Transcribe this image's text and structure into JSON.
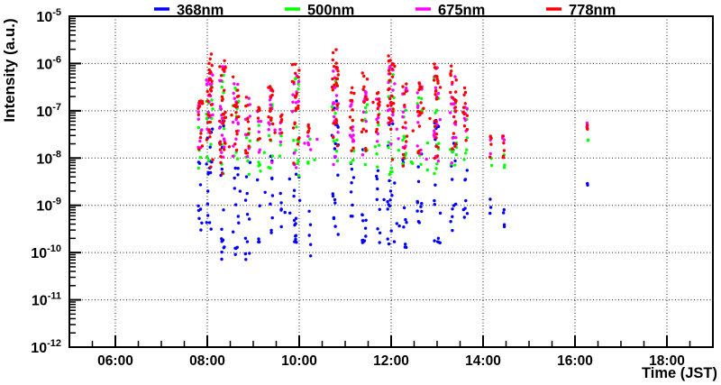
{
  "chart_data": {
    "type": "scatter",
    "title": "",
    "xlabel": "Time (JST)",
    "ylabel": "Intensity (a.u.)",
    "grid": true,
    "legend_position": "top",
    "marker": {
      "shape": "circle",
      "radius_px": 1.7
    },
    "x_axis": {
      "min_hours": 5.0,
      "max_hours": 19.0,
      "major_tick_hours": [
        6,
        8,
        10,
        12,
        14,
        16,
        18
      ],
      "major_tick_labels": [
        "06:00",
        "08:00",
        "10:00",
        "12:00",
        "14:00",
        "16:00",
        "18:00"
      ],
      "minor_tick_step_hours": 0.5
    },
    "y_axis": {
      "scale": "log",
      "min": 1e-12,
      "max": 1e-05,
      "tick_base": "10",
      "decade_exponents": [
        -5,
        -6,
        -7,
        -8,
        -9,
        -10,
        -11,
        -12
      ]
    },
    "series": [
      {
        "name": "368nm",
        "color": "#0000ff",
        "bias": 1.35
      },
      {
        "name": "500nm",
        "color": "#00ff00",
        "bias": 1.0
      },
      {
        "name": "675nm",
        "color": "#ff00ff",
        "bias": 0.7
      },
      {
        "name": "778nm",
        "color": "#ff0000",
        "bias": 0.6
      }
    ],
    "bursts": [
      {
        "t": 7.85,
        "w": 0.1,
        "pts": {
          "368nm": [
            9,
            -9.6,
            -8.0
          ],
          "500nm": [
            5,
            -8.3,
            -7.2
          ],
          "675nm": [
            9,
            -8.3,
            -6.8
          ],
          "778nm": [
            12,
            -8.3,
            -6.7
          ]
        }
      },
      {
        "t": 8.05,
        "w": 0.14,
        "pts": {
          "368nm": [
            18,
            -9.6,
            -6.9
          ],
          "500nm": [
            13,
            -8.4,
            -6.1
          ],
          "675nm": [
            18,
            -8.3,
            -6.0
          ],
          "778nm": [
            28,
            -8.3,
            -5.8
          ]
        }
      },
      {
        "t": 8.33,
        "w": 0.13,
        "pts": {
          "368nm": [
            17,
            -10.15,
            -7.1
          ],
          "500nm": [
            11,
            -8.4,
            -6.2
          ],
          "675nm": [
            17,
            -8.3,
            -6.0
          ],
          "778nm": [
            26,
            -8.4,
            -5.85
          ]
        }
      },
      {
        "t": 8.62,
        "w": 0.13,
        "pts": {
          "368nm": [
            13,
            -10.1,
            -7.5
          ],
          "500nm": [
            9,
            -8.3,
            -6.5
          ],
          "675nm": [
            13,
            -8.2,
            -6.4
          ],
          "778nm": [
            16,
            -8.3,
            -6.2
          ]
        }
      },
      {
        "t": 8.88,
        "w": 0.1,
        "pts": {
          "368nm": [
            11,
            -10.2,
            -7.9
          ],
          "500nm": [
            7,
            -8.4,
            -7.0
          ],
          "675nm": [
            9,
            -8.2,
            -6.7
          ],
          "778nm": [
            11,
            -8.3,
            -6.6
          ]
        }
      },
      {
        "t": 9.12,
        "w": 0.06,
        "pts": {
          "368nm": [
            6,
            -9.8,
            -8.3
          ],
          "500nm": [
            4,
            -8.3,
            -7.3
          ],
          "675nm": [
            5,
            -8.1,
            -7.0
          ],
          "778nm": [
            6,
            -8.2,
            -6.9
          ]
        }
      },
      {
        "t": 9.38,
        "w": 0.1,
        "pts": {
          "368nm": [
            9,
            -9.7,
            -7.8
          ],
          "500nm": [
            7,
            -8.3,
            -6.8
          ],
          "675nm": [
            10,
            -8.2,
            -6.5
          ],
          "778nm": [
            13,
            -8.3,
            -6.4
          ]
        }
      },
      {
        "t": 9.6,
        "w": 0.05,
        "pts": {
          "368nm": [
            5,
            -9.6,
            -8.4
          ],
          "500nm": [
            3,
            -8.2,
            -7.5
          ],
          "675nm": [
            4,
            -8.1,
            -7.2
          ],
          "778nm": [
            5,
            -8.2,
            -7.0
          ]
        }
      },
      {
        "t": 9.92,
        "w": 0.16,
        "pts": {
          "368nm": [
            15,
            -9.9,
            -7.3
          ],
          "500nm": [
            11,
            -8.4,
            -6.3
          ],
          "675nm": [
            15,
            -8.3,
            -6.2
          ],
          "778nm": [
            22,
            -8.3,
            -6.0
          ]
        }
      },
      {
        "t": 10.22,
        "w": 0.06,
        "pts": {
          "368nm": [
            5,
            -10.1,
            -8.5
          ],
          "500nm": [
            3,
            -8.2,
            -7.6
          ],
          "675nm": [
            4,
            -8.1,
            -7.4
          ],
          "778nm": [
            5,
            -8.1,
            -7.2
          ]
        }
      },
      {
        "t": 10.78,
        "w": 0.14,
        "pts": {
          "368nm": [
            20,
            -9.7,
            -6.6
          ],
          "500nm": [
            13,
            -8.3,
            -6.05
          ],
          "675nm": [
            17,
            -8.2,
            -5.95
          ],
          "778nm": [
            26,
            -8.3,
            -5.7
          ]
        }
      },
      {
        "t": 11.15,
        "w": 0.09,
        "pts": {
          "368nm": [
            8,
            -9.6,
            -7.9
          ],
          "500nm": [
            6,
            -8.2,
            -6.9
          ],
          "675nm": [
            9,
            -8.1,
            -6.6
          ],
          "778nm": [
            11,
            -8.2,
            -6.4
          ]
        }
      },
      {
        "t": 11.42,
        "w": 0.12,
        "pts": {
          "368nm": [
            11,
            -10.0,
            -7.6
          ],
          "500nm": [
            8,
            -8.3,
            -6.7
          ],
          "675nm": [
            12,
            -8.3,
            -6.3
          ],
          "778nm": [
            15,
            -8.3,
            -6.2
          ]
        }
      },
      {
        "t": 11.72,
        "w": 0.08,
        "pts": {
          "368nm": [
            8,
            -9.8,
            -8.0
          ],
          "500nm": [
            5,
            -8.2,
            -7.0
          ],
          "675nm": [
            8,
            -8.1,
            -6.7
          ],
          "778nm": [
            10,
            -8.2,
            -6.5
          ]
        }
      },
      {
        "t": 12.0,
        "w": 0.16,
        "pts": {
          "368nm": [
            17,
            -9.9,
            -7.0
          ],
          "500nm": [
            12,
            -8.4,
            -6.2
          ],
          "675nm": [
            17,
            -8.3,
            -6.0
          ],
          "778nm": [
            26,
            -8.3,
            -5.8
          ]
        }
      },
      {
        "t": 12.3,
        "w": 0.1,
        "pts": {
          "368nm": [
            11,
            -9.9,
            -7.8
          ],
          "500nm": [
            8,
            -8.3,
            -6.8
          ],
          "675nm": [
            11,
            -8.2,
            -6.5
          ],
          "778nm": [
            13,
            -8.3,
            -6.4
          ]
        }
      },
      {
        "t": 12.62,
        "w": 0.1,
        "pts": {
          "368nm": [
            10,
            -9.7,
            -7.7
          ],
          "500nm": [
            7,
            -8.3,
            -6.6
          ],
          "675nm": [
            11,
            -8.2,
            -6.3
          ],
          "778nm": [
            13,
            -8.3,
            -6.1
          ]
        }
      },
      {
        "t": 13.0,
        "w": 0.14,
        "pts": {
          "368nm": [
            16,
            -9.8,
            -7.2
          ],
          "500nm": [
            11,
            -8.4,
            -6.2
          ],
          "675nm": [
            16,
            -8.3,
            -6.0
          ],
          "778nm": [
            24,
            -8.3,
            -5.85
          ]
        }
      },
      {
        "t": 13.35,
        "w": 0.15,
        "pts": {
          "368nm": [
            14,
            -9.9,
            -7.5
          ],
          "500nm": [
            10,
            -8.3,
            -6.5
          ],
          "675nm": [
            14,
            -8.3,
            -6.2
          ],
          "778nm": [
            20,
            -8.3,
            -6.0
          ]
        }
      },
      {
        "t": 13.62,
        "w": 0.08,
        "pts": {
          "368nm": [
            7,
            -9.5,
            -7.9
          ],
          "500nm": [
            5,
            -8.2,
            -6.9
          ],
          "675nm": [
            7,
            -8.1,
            -6.6
          ],
          "778nm": [
            9,
            -8.2,
            -6.4
          ]
        }
      },
      {
        "t": 14.17,
        "w": 0.05,
        "pts": {
          "368nm": [
            3,
            -9.2,
            -8.6
          ],
          "500nm": [
            2,
            -8.2,
            -7.9
          ],
          "675nm": [
            3,
            -8.0,
            -7.45
          ],
          "778nm": [
            4,
            -8.1,
            -7.4
          ]
        }
      },
      {
        "t": 14.45,
        "w": 0.05,
        "pts": {
          "368nm": [
            4,
            -9.5,
            -8.8
          ],
          "500nm": [
            3,
            -8.2,
            -7.7
          ],
          "675nm": [
            3,
            -7.9,
            -7.5
          ],
          "778nm": [
            5,
            -8.0,
            -7.4
          ]
        }
      },
      {
        "t": 16.28,
        "w": 0.05,
        "pts": {
          "368nm": [
            2,
            -8.6,
            -8.4
          ],
          "500nm": [
            2,
            -7.65,
            -7.5
          ],
          "675nm": [
            2,
            -7.35,
            -7.25
          ],
          "778nm": [
            3,
            -7.45,
            -7.3
          ]
        }
      },
      {
        "t": 9.3,
        "w": 2.2,
        "pts": {
          "368nm": [
            7,
            -9.5,
            -8.3
          ],
          "500nm": [
            9,
            -8.3,
            -7.6
          ],
          "675nm": [
            5,
            -8.2,
            -7.0
          ],
          "778nm": [
            8,
            -8.2,
            -6.8
          ]
        }
      },
      {
        "t": 12.4,
        "w": 2.6,
        "pts": {
          "368nm": [
            8,
            -9.6,
            -8.4
          ],
          "500nm": [
            10,
            -8.3,
            -7.6
          ],
          "675nm": [
            6,
            -8.1,
            -7.0
          ],
          "778nm": [
            10,
            -8.2,
            -6.8
          ]
        }
      }
    ]
  }
}
